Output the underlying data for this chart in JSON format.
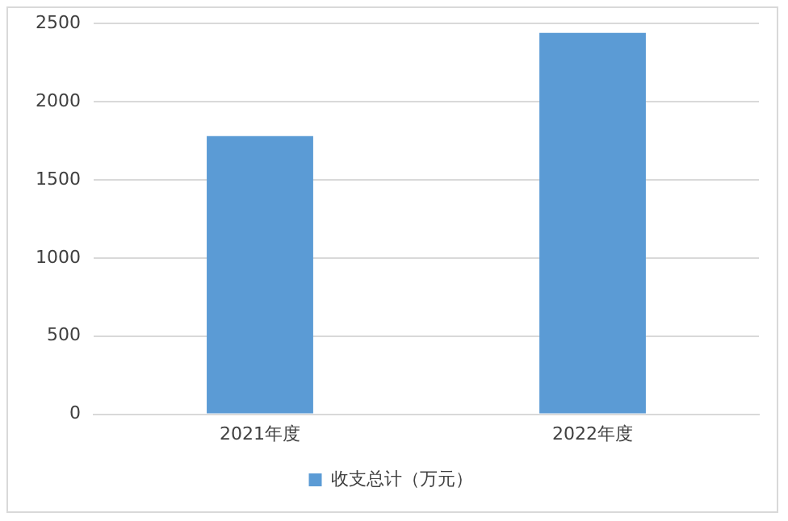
{
  "chart_data": {
    "type": "bar",
    "categories": [
      "2021年度",
      "2022年度"
    ],
    "series": [
      {
        "name": "收支总计（万元）",
        "color": "#5b9bd5",
        "values": [
          1780,
          2440
        ]
      }
    ],
    "ylim": [
      0,
      2500
    ],
    "yticks": [
      0,
      500,
      1000,
      1500,
      2000,
      2500
    ],
    "grid": "y",
    "legend": "bottom"
  }
}
